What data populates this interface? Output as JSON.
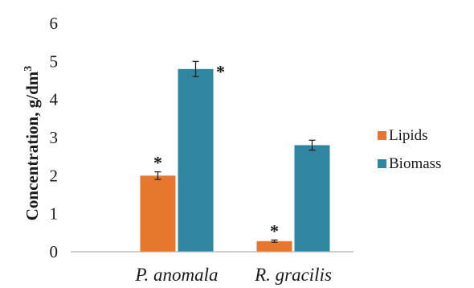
{
  "chart_data": {
    "type": "bar",
    "categories": [
      "P. anomala",
      "R. gracilis"
    ],
    "series": [
      {
        "name": "Lipids",
        "color": "#e8772e",
        "values": [
          2.0,
          0.28
        ],
        "errors": [
          0.1,
          0.03
        ],
        "significance": [
          "*",
          "*"
        ]
      },
      {
        "name": "Biomass",
        "color": "#2e86a1",
        "values": [
          4.8,
          2.8
        ],
        "errors": [
          0.2,
          0.13
        ],
        "significance": [
          "*",
          ""
        ]
      }
    ],
    "ylabel_main": "Concentration, g/dm",
    "ylabel_sup": "3",
    "ylim": [
      0,
      6
    ],
    "yticks": [
      "0",
      "1",
      "2",
      "3",
      "4",
      "5",
      "6"
    ],
    "grid": false,
    "legend_position": "right"
  }
}
